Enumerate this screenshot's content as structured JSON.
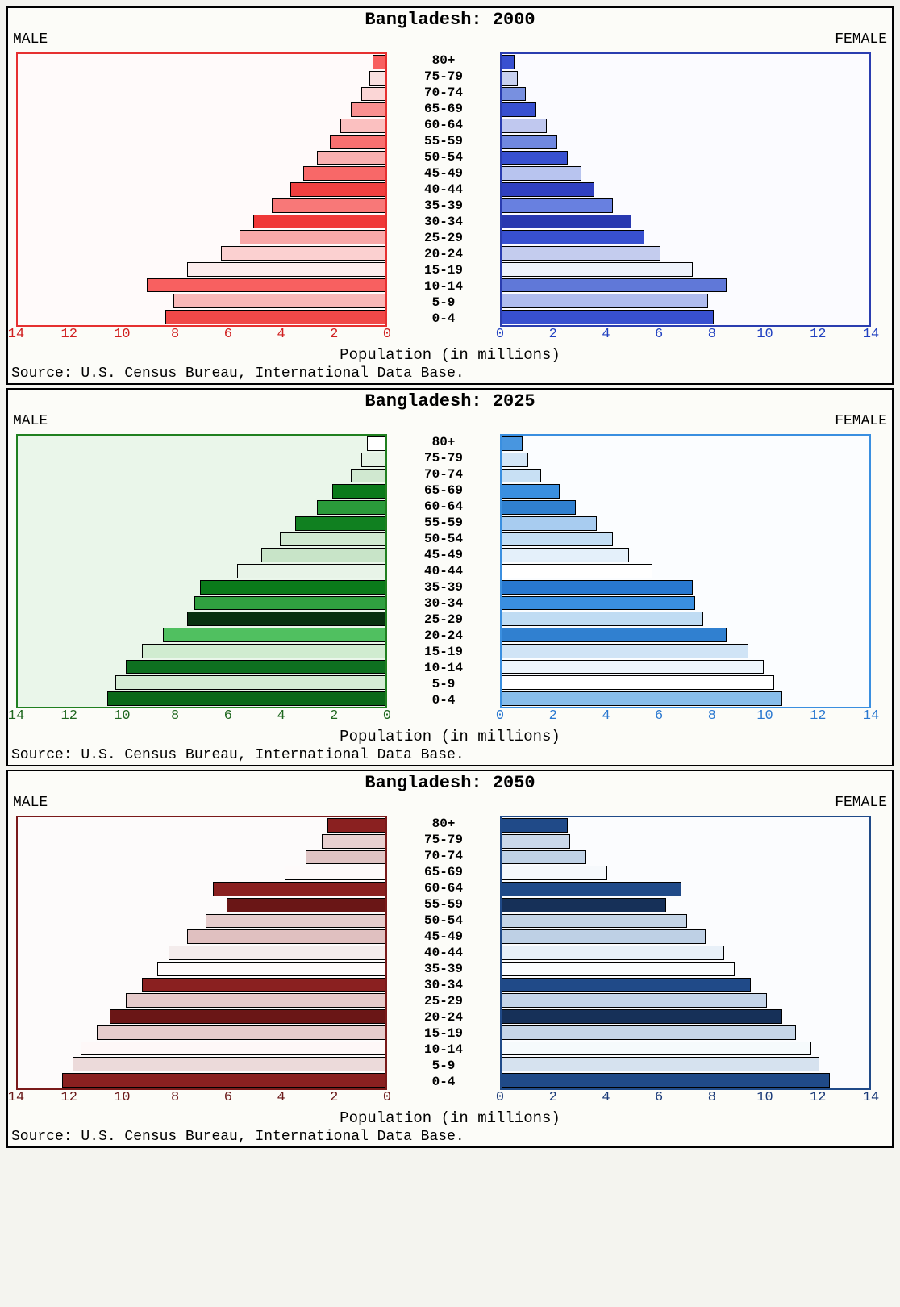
{
  "xlabel": "Population (in millions)",
  "source": "Source: U.S. Census Bureau, International Data Base.",
  "male_label": "MALE",
  "female_label": "FEMALE",
  "age_groups": [
    "80+",
    "75-79",
    "70-74",
    "65-69",
    "60-64",
    "55-59",
    "50-54",
    "45-49",
    "40-44",
    "35-39",
    "30-34",
    "25-29",
    "20-24",
    "15-19",
    "10-14",
    "5-9",
    "0-4"
  ],
  "xmax": 14,
  "xtick_step": 2,
  "bar_label_fontsize": 16,
  "axis_fontsize": 17,
  "panels": [
    {
      "title_country": "Bangladesh:",
      "title_year": "2000",
      "left_border_color": "#e63030",
      "right_border_color": "#2a3db0",
      "left_plot_bg": "#fffafa",
      "right_plot_bg": "#fbfbff",
      "left_axis_color": "#d02020",
      "right_axis_color": "#2040c0",
      "male_colors": [
        "#f86060",
        "#f8e0e0",
        "#fbd6d6",
        "#f99090",
        "#fbc0c0",
        "#f87070",
        "#f9b0b0",
        "#f86868",
        "#f04040",
        "#f87878",
        "#f03838",
        "#f9a8a8",
        "#fbd0d0",
        "#fcecec",
        "#f86060",
        "#f9b8b8",
        "#f04848"
      ],
      "female_colors": [
        "#3850d0",
        "#c8d0ef",
        "#7890e0",
        "#3850d0",
        "#c0c8ef",
        "#7088e0",
        "#3850d0",
        "#b8c4ef",
        "#3040c0",
        "#6880e0",
        "#2838b0",
        "#3850d0",
        "#c4ccee",
        "#eef2fb",
        "#6078d8",
        "#b0bcee",
        "#3850d0"
      ],
      "male_values": [
        0.5,
        0.6,
        0.9,
        1.3,
        1.7,
        2.1,
        2.6,
        3.1,
        3.6,
        4.3,
        5.0,
        5.5,
        6.2,
        7.5,
        9.0,
        8.0,
        8.3
      ],
      "female_values": [
        0.5,
        0.6,
        0.9,
        1.3,
        1.7,
        2.1,
        2.5,
        3.0,
        3.5,
        4.2,
        4.9,
        5.4,
        6.0,
        7.2,
        8.5,
        7.8,
        8.0
      ]
    },
    {
      "title_country": "Bangladesh:",
      "title_year": "2025",
      "left_border_color": "#208020",
      "right_border_color": "#3a8fe0",
      "left_plot_bg": "#eaf6ea",
      "right_plot_bg": "#fbfdff",
      "left_axis_color": "#206820",
      "right_axis_color": "#2a78d0",
      "male_colors": [
        "#ffffff",
        "#e4f2e4",
        "#d0e8d0",
        "#0a7a1a",
        "#2a9a3a",
        "#108020",
        "#d0e8d0",
        "#c8e4c8",
        "#e8f4e8",
        "#0a7a1a",
        "#30a040",
        "#083010",
        "#50c060",
        "#d0ecd0",
        "#0e7020",
        "#d4ecd4",
        "#0a6818"
      ],
      "female_colors": [
        "#4896e0",
        "#d4e6f6",
        "#c8e0f4",
        "#3a8fe0",
        "#3080d0",
        "#a8ccf0",
        "#c4def4",
        "#e4f0fa",
        "#ffffff",
        "#2878d0",
        "#3a8fe0",
        "#c0dcf3",
        "#3080d0",
        "#d0e4f6",
        "#eef6fc",
        "#ffffff",
        "#88bdea"
      ],
      "male_values": [
        0.7,
        0.9,
        1.3,
        2.0,
        2.6,
        3.4,
        4.0,
        4.7,
        5.6,
        7.0,
        7.2,
        7.5,
        8.4,
        9.2,
        9.8,
        10.2,
        10.5
      ],
      "female_values": [
        0.8,
        1.0,
        1.5,
        2.2,
        2.8,
        3.6,
        4.2,
        4.8,
        5.7,
        7.2,
        7.3,
        7.6,
        8.5,
        9.3,
        9.9,
        10.3,
        10.6
      ]
    },
    {
      "title_country": "Bangladesh:",
      "title_year": "2050",
      "left_border_color": "#7a1a1a",
      "right_border_color": "#204a88",
      "left_plot_bg": "#fdfbfb",
      "right_plot_bg": "#fbfcfe",
      "left_axis_color": "#6a1818",
      "right_axis_color": "#1a3a78",
      "male_colors": [
        "#8a2020",
        "#e8d0d0",
        "#e0c4c4",
        "#fefafa",
        "#8a2020",
        "#6a1616",
        "#e6cccc",
        "#e0c0c0",
        "#f4ecec",
        "#fefafa",
        "#8a2020",
        "#e6caca",
        "#6a1616",
        "#e6cccc",
        "#fef8f8",
        "#ecdada",
        "#8a2020"
      ],
      "female_colors": [
        "#204a88",
        "#cad8ea",
        "#c0d2e6",
        "#f6f9fc",
        "#204a88",
        "#163058",
        "#c4d4e6",
        "#bed0e5",
        "#e8f0f8",
        "#fafcfe",
        "#204a88",
        "#c4d4e8",
        "#163058",
        "#c6d6e8",
        "#f6fafc",
        "#d6e2ef",
        "#204a88"
      ],
      "male_values": [
        2.2,
        2.4,
        3.0,
        3.8,
        6.5,
        6.0,
        6.8,
        7.5,
        8.2,
        8.6,
        9.2,
        9.8,
        10.4,
        10.9,
        11.5,
        11.8,
        12.2
      ],
      "female_values": [
        2.5,
        2.6,
        3.2,
        4.0,
        6.8,
        6.2,
        7.0,
        7.7,
        8.4,
        8.8,
        9.4,
        10.0,
        10.6,
        11.1,
        11.7,
        12.0,
        12.4
      ]
    }
  ]
}
